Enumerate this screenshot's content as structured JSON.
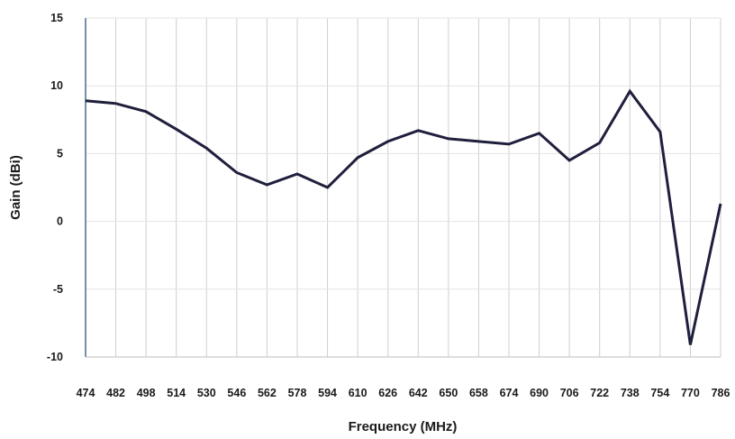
{
  "chart_data": {
    "type": "line",
    "title": "",
    "xlabel": "Frequency (MHz)",
    "ylabel": "Gain (dBi)",
    "ylim": [
      -10,
      15
    ],
    "yticks": [
      "15",
      "10",
      "5",
      "0",
      "-5",
      "-10"
    ],
    "grid": "vertical",
    "categories": [
      "474",
      "482",
      "498",
      "514",
      "530",
      "546",
      "562",
      "578",
      "594",
      "610",
      "626",
      "642",
      "650",
      "658",
      "674",
      "690",
      "706",
      "722",
      "738",
      "754",
      "770",
      "786"
    ],
    "series": [
      {
        "color": "#1f1f3d",
        "values": [
          8.9,
          8.7,
          8.1,
          6.8,
          5.4,
          3.6,
          2.7,
          3.5,
          2.5,
          4.7,
          5.9,
          6.7,
          6.1,
          5.9,
          5.7,
          6.5,
          4.5,
          5.8,
          9.6,
          6.6,
          -9.1,
          1.3
        ]
      }
    ]
  }
}
